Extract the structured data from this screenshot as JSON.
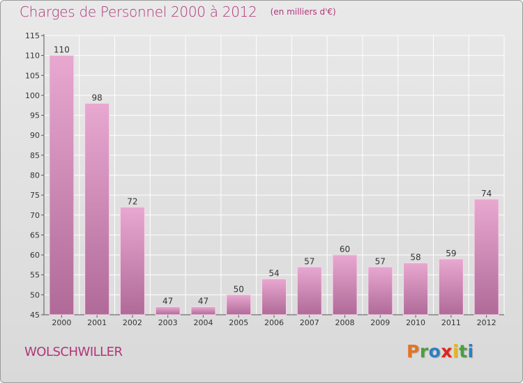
{
  "page": {
    "title": "Charges de Personnel 2000 à 2012",
    "subtitle": "(en milliers d'€)",
    "commune": "WOLSCHWILLER",
    "logo": "Proxiti"
  },
  "colors": {
    "title": "#b03678",
    "bar_top": "#e8a8d0",
    "bar_bottom": "#b06a98",
    "grid": "#ffffff",
    "logo_letters": [
      "#e57322",
      "#4aa03c",
      "#2f7ec0",
      "#e2231a",
      "#e8b51c",
      "#4aa03c",
      "#2f7ec0"
    ]
  },
  "chart_data": {
    "type": "bar",
    "title": "Charges de Personnel 2000 à 2012",
    "subtitle": "(en milliers d'€)",
    "xlabel": "",
    "ylabel": "",
    "categories": [
      "2000",
      "2001",
      "2002",
      "2003",
      "2004",
      "2005",
      "2006",
      "2007",
      "2008",
      "2009",
      "2010",
      "2011",
      "2012"
    ],
    "values": [
      110,
      98,
      72,
      47,
      47,
      50,
      54,
      57,
      60,
      57,
      58,
      59,
      74
    ],
    "ylim": [
      45,
      115
    ],
    "yticks": [
      45,
      50,
      55,
      60,
      65,
      70,
      75,
      80,
      85,
      90,
      95,
      100,
      105,
      110,
      115
    ],
    "grid": true,
    "legend": "none"
  }
}
